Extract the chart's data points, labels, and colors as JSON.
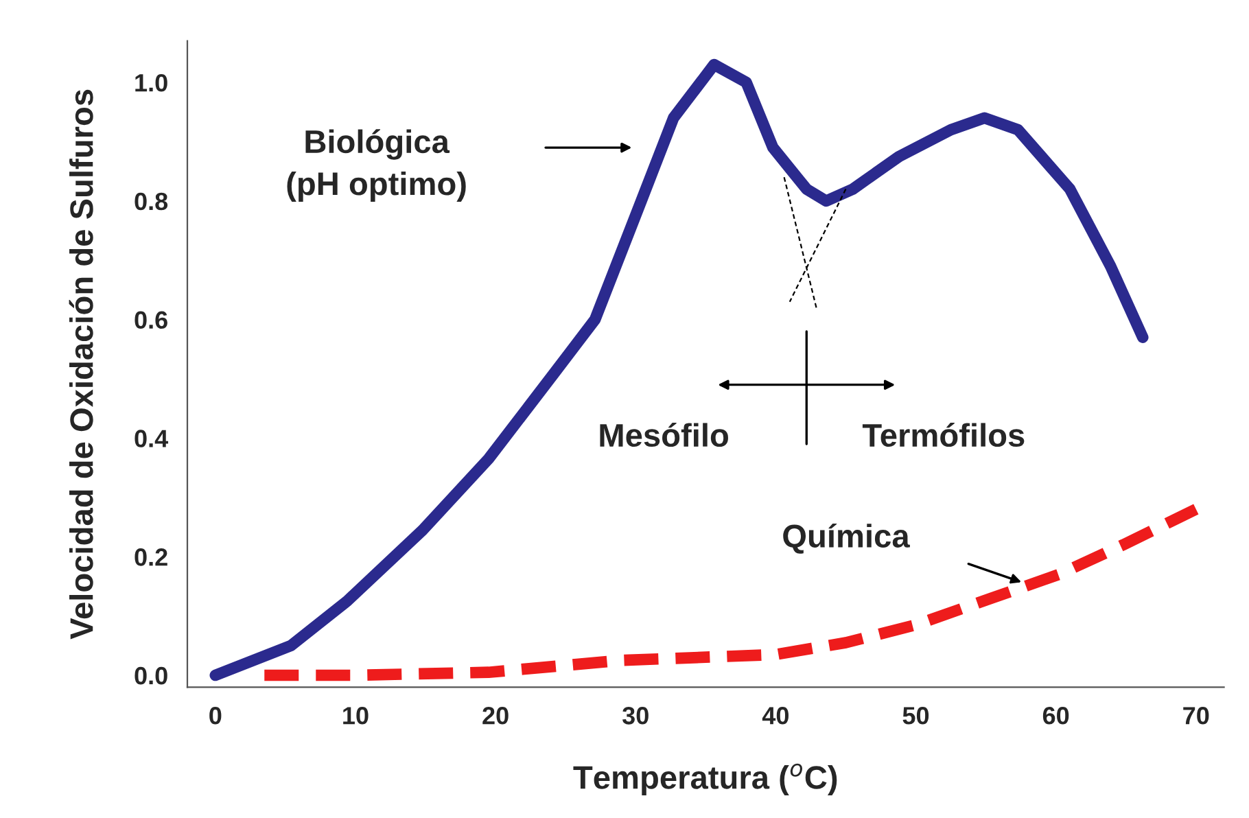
{
  "chart_data": {
    "type": "line",
    "xlabel": "Temperatura ($^{o}$C)",
    "ylabel": "Velocidad de Oxidación de Sulfuros",
    "xlim": [
      -2,
      72
    ],
    "ylim": [
      -0.02,
      1.07
    ],
    "xticks": [
      0,
      10,
      20,
      30,
      40,
      50,
      60,
      70
    ],
    "yticks": [
      {
        "value": 0,
        "label": "0.0"
      },
      {
        "value": 0.2,
        "label": "0.2"
      },
      {
        "value": 0.4,
        "label": "0.4"
      },
      {
        "value": 0.6,
        "label": "0.6"
      },
      {
        "value": 0.8,
        "label": "0.8"
      },
      {
        "value": 1.0,
        "label": "1.0"
      }
    ],
    "grid": false,
    "series": [
      {
        "color": "#2b2a8e",
        "line_style": "solid",
        "x": [
          0,
          5.4,
          9.4,
          14.8,
          19.5,
          24.2,
          27.1,
          30.4,
          32.7,
          35.6,
          37.9,
          39.8,
          42.2,
          43.6,
          45.5,
          48.8,
          52.5,
          54.9,
          57.3,
          61,
          63.9,
          66.2
        ],
        "values": [
          0,
          0.05,
          0.125,
          0.245,
          0.365,
          0.51,
          0.6,
          0.8,
          0.94,
          1.03,
          1.0,
          0.89,
          0.82,
          0.8,
          0.82,
          0.875,
          0.92,
          0.94,
          0.92,
          0.82,
          0.69,
          0.57
        ]
      },
      {
        "color": "#ee1c1c",
        "line_style": "dashed",
        "x": [
          3.5,
          10,
          19.5,
          28.9,
          40,
          45,
          50,
          55.4,
          60.2,
          64.8,
          70
        ],
        "values": [
          0,
          0,
          0.005,
          0.025,
          0.035,
          0.055,
          0.085,
          0.13,
          0.17,
          0.22,
          0.28
        ]
      }
    ],
    "annotations": [
      "Biológica\n(pH optimo)",
      "Química",
      "Mesófilo",
      "Termófilos"
    ]
  }
}
